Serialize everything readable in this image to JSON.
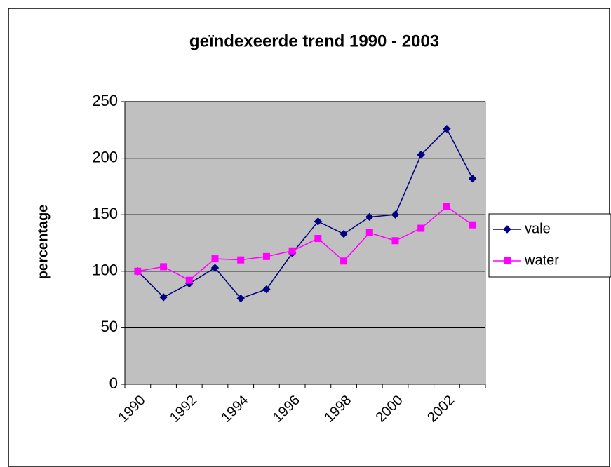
{
  "chart_data": {
    "type": "line",
    "title": "geïndexeerde trend 1990 - 2003",
    "y_label": "percentage",
    "categories": [
      "1990",
      null,
      "1992",
      null,
      "1994",
      null,
      "1996",
      null,
      "1998",
      null,
      "2000",
      null,
      "2002",
      null
    ],
    "series": [
      {
        "name": "vale",
        "color": "#000080",
        "marker": "diamond",
        "values": [
          100,
          77,
          89,
          103,
          76,
          84,
          116,
          144,
          133,
          148,
          150,
          203,
          226,
          182
        ]
      },
      {
        "name": "water",
        "color": "#ff00ff",
        "marker": "square",
        "values": [
          100,
          104,
          92,
          111,
          110,
          113,
          118,
          129,
          109,
          134,
          127,
          138,
          157,
          141
        ]
      }
    ],
    "ylim": [
      0,
      250
    ],
    "yticks": [
      0,
      50,
      100,
      150,
      200,
      250
    ],
    "grid": true,
    "legend": "right"
  }
}
